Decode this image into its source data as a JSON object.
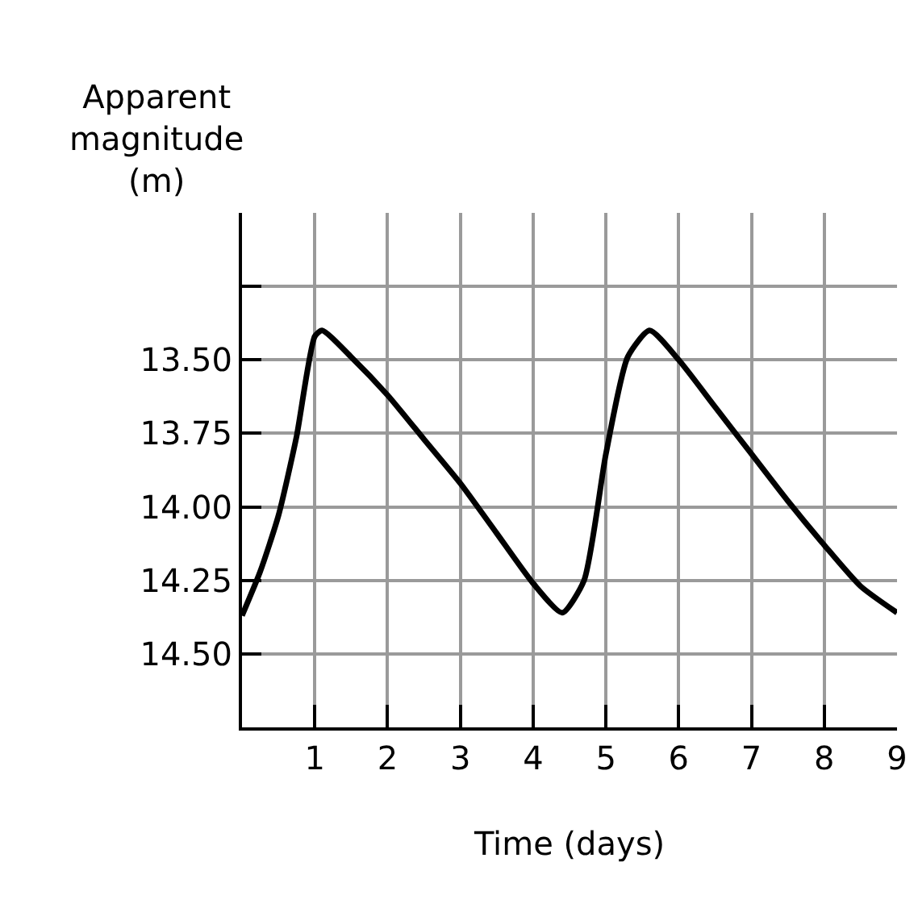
{
  "chart_data": {
    "type": "line",
    "xlabel": "Time (days)",
    "ylabel": "Apparent\nmagnitude\n(m)",
    "x": [
      0,
      0.25,
      0.5,
      0.75,
      1.0,
      1.1,
      1.5,
      2,
      2.5,
      3,
      3.5,
      4,
      4.4,
      4.7,
      5,
      5.3,
      5.6,
      6,
      6.5,
      7,
      7.5,
      8,
      8.5,
      9
    ],
    "series": [
      {
        "color": "#000000",
        "values": [
          14.37,
          14.22,
          14.03,
          13.76,
          13.42,
          13.4,
          13.49,
          13.62,
          13.77,
          13.92,
          14.09,
          14.26,
          14.36,
          14.25,
          13.82,
          13.49,
          13.4,
          13.5,
          13.66,
          13.82,
          13.98,
          14.13,
          14.27,
          14.36
        ]
      }
    ],
    "xlim": [
      0,
      9
    ],
    "xticks": [
      {
        "value": 0,
        "label": null
      },
      1,
      2,
      3,
      4,
      5,
      6,
      7,
      8,
      9
    ],
    "ylim": [
      14.75,
      13.0
    ],
    "yticks": [
      {
        "value": 13.25,
        "label": null
      },
      {
        "value": 13.5,
        "label": "13.50"
      },
      13.75,
      {
        "value": 14.0,
        "label": "14.00"
      },
      14.25,
      {
        "value": 14.5,
        "label": "14.50"
      },
      {
        "value": 14.75,
        "label": null
      }
    ],
    "grid": true,
    "marker": "none",
    "line_style": "solid",
    "legend": false
  }
}
